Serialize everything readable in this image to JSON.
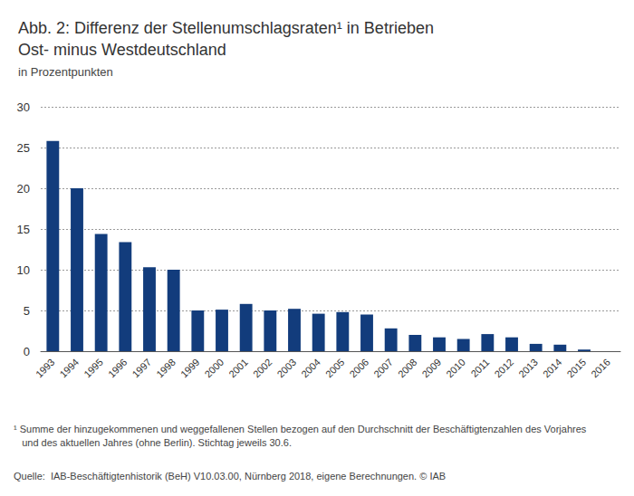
{
  "chart_data": {
    "type": "bar",
    "title": "Abb. 2: Differenz der Stellenumschlagsraten¹ in Betrieben\nOst- minus Westdeutschland",
    "subtitle": "in Prozentpunkten",
    "annotations": [
      "¹ Summe der hinzugekommenen und weggefallenen Stellen bezogen auf den Durchschnitt der Beschäftigtenzahlen des Vorjahres\n   und des aktuellen Jahres (ohne Berlin). Stichtag jeweils 30.6.",
      "Quelle:  IAB-Beschäftigtenhistorik (BeH) V10.03.00, Nürnberg 2018, eigene Berechnungen. © IAB"
    ],
    "categories": [
      "1993",
      "1994",
      "1995",
      "1996",
      "1997",
      "1998",
      "1999",
      "2000",
      "2001",
      "2002",
      "2003",
      "2004",
      "2005",
      "2006",
      "2007",
      "2008",
      "2009",
      "2010",
      "2011",
      "2012",
      "2013",
      "2014",
      "2015",
      "2016"
    ],
    "values": [
      25.8,
      20.0,
      14.4,
      13.4,
      10.3,
      10.0,
      5.0,
      5.1,
      5.8,
      5.0,
      5.2,
      4.6,
      4.8,
      4.5,
      2.8,
      2.0,
      1.7,
      1.5,
      2.1,
      1.7,
      0.9,
      0.8,
      0.2,
      0.0
    ],
    "color": "#123c7c",
    "ylim": [
      0,
      30
    ],
    "yticks": [
      0,
      5,
      10,
      15,
      20,
      25,
      30
    ],
    "grid": true
  }
}
